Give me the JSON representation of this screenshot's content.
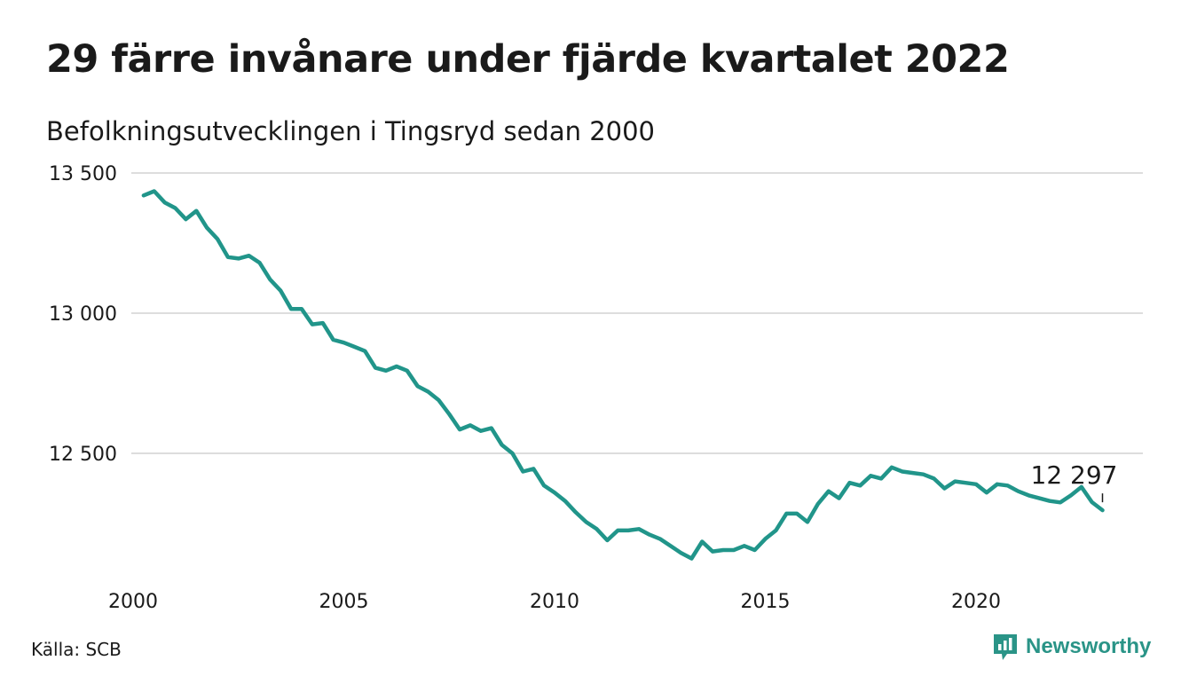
{
  "title": "29 färre invånare under fjärde kvartalet 2022",
  "subtitle": "Befolkningsutvecklingen i Tingsryd sedan 2000",
  "source": "Källa: SCB",
  "brand": "Newsworthy",
  "colors": {
    "line": "#21958a",
    "grid": "#dddddd",
    "text": "#1a1a1a",
    "brand": "#2a9487"
  },
  "chart_data": {
    "type": "line",
    "title": "29 färre invånare under fjärde kvartalet 2022",
    "subtitle": "Befolkningsutvecklingen i Tingsryd sedan 2000",
    "xlabel": "",
    "ylabel": "",
    "xlim": [
      2000,
      2023.4
    ],
    "ylim": [
      12100,
      13500
    ],
    "x_ticks": [
      2000,
      2005,
      2010,
      2015,
      2020
    ],
    "x_tick_labels": [
      "2000",
      "2005",
      "2010",
      "2015",
      "2020"
    ],
    "y_ticks": [
      12500,
      13000,
      13500
    ],
    "y_tick_labels": [
      "12 500",
      "13 000",
      "13 500"
    ],
    "grid": "horizontal",
    "legend": "none",
    "last_value_label": "12 297",
    "series": [
      {
        "x": [
          2000.25,
          2000.5,
          2000.75,
          2001.0,
          2001.25,
          2001.5,
          2001.75,
          2002.0,
          2002.25,
          2002.5,
          2002.75,
          2003.0,
          2003.25,
          2003.5,
          2003.75,
          2004.0,
          2004.25,
          2004.5,
          2004.75,
          2005.0,
          2005.25,
          2005.5,
          2005.75,
          2006.0,
          2006.25,
          2006.5,
          2006.75,
          2007.0,
          2007.25,
          2007.5,
          2007.75,
          2008.0,
          2008.25,
          2008.5,
          2008.75,
          2009.0,
          2009.25,
          2009.5,
          2009.75,
          2010.0,
          2010.25,
          2010.5,
          2010.75,
          2011.0,
          2011.25,
          2011.5,
          2011.75,
          2012.0,
          2012.25,
          2012.5,
          2012.75,
          2013.0,
          2013.25,
          2013.5,
          2013.75,
          2014.0,
          2014.25,
          2014.5,
          2014.75,
          2015.0,
          2015.25,
          2015.5,
          2015.75,
          2016.0,
          2016.25,
          2016.5,
          2016.75,
          2017.0,
          2017.25,
          2017.5,
          2017.75,
          2018.0,
          2018.25,
          2018.5,
          2018.75,
          2019.0,
          2019.25,
          2019.5,
          2019.75,
          2020.0,
          2020.25,
          2020.5,
          2020.75,
          2021.0,
          2021.25,
          2021.5,
          2021.75,
          2022.0,
          2022.25,
          2022.5,
          2022.75,
          2023.0
        ],
        "values": [
          13420,
          13435,
          13395,
          13375,
          13335,
          13365,
          13305,
          13265,
          13200,
          13195,
          13205,
          13180,
          13120,
          13080,
          13015,
          13015,
          12960,
          12965,
          12905,
          12895,
          12880,
          12865,
          12805,
          12795,
          12810,
          12795,
          12740,
          12720,
          12690,
          12640,
          12585,
          12600,
          12580,
          12590,
          12530,
          12500,
          12435,
          12445,
          12385,
          12360,
          12330,
          12290,
          12255,
          12230,
          12190,
          12225,
          12225,
          12230,
          12210,
          12195,
          12170,
          12145,
          12125,
          12185,
          12150,
          12155,
          12155,
          12170,
          12155,
          12195,
          12225,
          12285,
          12285,
          12255,
          12320,
          12365,
          12340,
          12395,
          12385,
          12420,
          12410,
          12450,
          12435,
          12430,
          12425,
          12410,
          12375,
          12400,
          12395,
          12390,
          12360,
          12390,
          12385,
          12365,
          12350,
          12340,
          12330,
          12325,
          12350,
          12380,
          12326,
          12297
        ]
      }
    ]
  }
}
